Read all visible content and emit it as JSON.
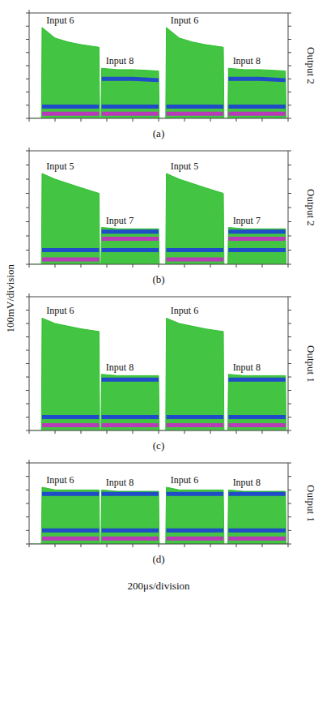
{
  "xlabel": "200μs/division",
  "ylabel": "100mV/division",
  "chart_data": [
    {
      "type": "area",
      "title": "(a)",
      "subtitle": "Output 2",
      "tick_labels": false,
      "grid": false,
      "x": [
        0,
        95,
        100,
        200,
        300,
        400,
        540,
        545,
        555,
        560,
        680,
        800,
        1000,
        1005,
        1055,
        1060,
        1160,
        1260,
        1360,
        1500,
        1505,
        1535,
        1540,
        1660,
        1780,
        1980,
        1985,
        2000
      ],
      "xlim": [
        0,
        2000
      ],
      "xticks": [
        0,
        200,
        400,
        600,
        800,
        1000,
        1200,
        1400,
        1600,
        1800,
        2000
      ],
      "ylim": [
        0,
        800
      ],
      "yticks": [
        0,
        100,
        200,
        300,
        400,
        500,
        600,
        700,
        800
      ],
      "series": [
        {
          "type": "area",
          "color": "#2fbf2f",
          "values": [
            0,
            0,
            690,
            610,
            580,
            560,
            540,
            0,
            0,
            380,
            370,
            370,
            360,
            0,
            0,
            690,
            610,
            580,
            560,
            540,
            0,
            0,
            380,
            370,
            370,
            360,
            0,
            0
          ]
        },
        {
          "type": "line",
          "color": "#1a35e0",
          "values": [
            null,
            null,
            null,
            null,
            null,
            null,
            null,
            null,
            null,
            300,
            300,
            300,
            290,
            null,
            null,
            null,
            null,
            null,
            null,
            null,
            null,
            null,
            300,
            300,
            300,
            290,
            null,
            null
          ]
        },
        {
          "type": "line",
          "color": "#1a35e0",
          "values": [
            null,
            null,
            90,
            90,
            90,
            90,
            90,
            null,
            null,
            90,
            90,
            90,
            90,
            null,
            null,
            90,
            90,
            90,
            90,
            90,
            null,
            null,
            90,
            90,
            90,
            90,
            null,
            null
          ]
        },
        {
          "type": "line",
          "color": "#cc22cc",
          "values": [
            null,
            null,
            35,
            35,
            35,
            35,
            35,
            null,
            null,
            35,
            35,
            35,
            35,
            null,
            null,
            35,
            35,
            35,
            35,
            35,
            null,
            null,
            35,
            35,
            35,
            35,
            null,
            null
          ]
        }
      ],
      "annotations": [
        {
          "text": "Input 6",
          "x": 240
        },
        {
          "text": "Input 8",
          "x": 700
        },
        {
          "text": "Input 6",
          "x": 1200
        },
        {
          "text": "Input 8",
          "x": 1680
        }
      ]
    },
    {
      "type": "area",
      "title": "(b)",
      "subtitle": "Output 2",
      "tick_labels": false,
      "grid": false,
      "x": [
        0,
        95,
        100,
        200,
        300,
        400,
        540,
        545,
        555,
        560,
        680,
        800,
        1000,
        1005,
        1055,
        1060,
        1160,
        1260,
        1360,
        1500,
        1505,
        1535,
        1540,
        1660,
        1780,
        1980,
        1985,
        2000
      ],
      "xlim": [
        0,
        2000
      ],
      "xticks": [
        0,
        200,
        400,
        600,
        800,
        1000,
        1200,
        1400,
        1600,
        1800,
        2000
      ],
      "ylim": [
        0,
        800
      ],
      "yticks": [
        0,
        100,
        200,
        300,
        400,
        500,
        600,
        700,
        800
      ],
      "series": [
        {
          "type": "area",
          "color": "#2fbf2f",
          "values": [
            0,
            0,
            640,
            600,
            570,
            540,
            500,
            0,
            0,
            260,
            250,
            250,
            250,
            0,
            0,
            640,
            600,
            570,
            540,
            500,
            0,
            0,
            260,
            250,
            250,
            250,
            0,
            0
          ]
        },
        {
          "type": "line",
          "color": "#1a35e0",
          "values": [
            null,
            null,
            null,
            null,
            null,
            null,
            null,
            null,
            null,
            230,
            230,
            230,
            230,
            null,
            null,
            null,
            null,
            null,
            null,
            null,
            null,
            null,
            230,
            230,
            230,
            230,
            null,
            null
          ]
        },
        {
          "type": "line",
          "color": "#1a35e0",
          "values": [
            null,
            null,
            100,
            100,
            100,
            100,
            100,
            null,
            null,
            100,
            100,
            100,
            100,
            null,
            null,
            100,
            100,
            100,
            100,
            100,
            null,
            null,
            100,
            100,
            100,
            100,
            null,
            null
          ]
        },
        {
          "type": "line",
          "color": "#cc22cc",
          "values": [
            null,
            null,
            35,
            35,
            35,
            35,
            35,
            null,
            null,
            180,
            180,
            180,
            180,
            null,
            null,
            35,
            35,
            35,
            35,
            35,
            null,
            null,
            180,
            180,
            180,
            180,
            null,
            null
          ]
        }
      ],
      "annotations": [
        {
          "text": "Input 5",
          "x": 240
        },
        {
          "text": "Input 7",
          "x": 700
        },
        {
          "text": "Input 5",
          "x": 1200
        },
        {
          "text": "Input 7",
          "x": 1680
        }
      ]
    },
    {
      "type": "area",
      "title": "(c)",
      "subtitle": "Output 1",
      "tick_labels": false,
      "grid": false,
      "x": [
        0,
        95,
        100,
        200,
        300,
        400,
        540,
        545,
        555,
        560,
        680,
        800,
        1000,
        1005,
        1055,
        1060,
        1160,
        1260,
        1360,
        1500,
        1505,
        1535,
        1540,
        1660,
        1780,
        1980,
        1985,
        2000
      ],
      "xlim": [
        0,
        2000
      ],
      "xticks": [
        0,
        200,
        400,
        600,
        800,
        1000,
        1200,
        1400,
        1600,
        1800,
        2000
      ],
      "ylim": [
        0,
        1000
      ],
      "yticks": [
        0,
        100,
        200,
        300,
        400,
        500,
        600,
        700,
        800,
        900,
        1000
      ],
      "series": [
        {
          "type": "area",
          "color": "#2fbf2f",
          "values": [
            0,
            0,
            840,
            800,
            780,
            760,
            740,
            0,
            0,
            420,
            410,
            410,
            410,
            0,
            0,
            840,
            800,
            780,
            760,
            740,
            0,
            0,
            420,
            410,
            410,
            410,
            0,
            0
          ]
        },
        {
          "type": "line",
          "color": "#1a35e0",
          "values": [
            null,
            null,
            null,
            null,
            null,
            null,
            null,
            null,
            null,
            380,
            380,
            380,
            380,
            null,
            null,
            null,
            null,
            null,
            null,
            null,
            null,
            null,
            380,
            380,
            380,
            380,
            null,
            null
          ]
        },
        {
          "type": "line",
          "color": "#1a35e0",
          "values": [
            null,
            null,
            100,
            100,
            100,
            100,
            100,
            null,
            null,
            100,
            100,
            100,
            100,
            null,
            null,
            100,
            100,
            100,
            100,
            100,
            null,
            null,
            100,
            100,
            100,
            100,
            null,
            null
          ]
        },
        {
          "type": "line",
          "color": "#cc22cc",
          "values": [
            null,
            null,
            40,
            40,
            40,
            40,
            40,
            null,
            null,
            40,
            40,
            40,
            40,
            null,
            null,
            40,
            40,
            40,
            40,
            40,
            null,
            null,
            40,
            40,
            40,
            40,
            null,
            null
          ]
        }
      ],
      "annotations": [
        {
          "text": "Input 6",
          "x": 240
        },
        {
          "text": "Input 8",
          "x": 700
        },
        {
          "text": "Input 6",
          "x": 1200
        },
        {
          "text": "Input 8",
          "x": 1680
        }
      ]
    },
    {
      "type": "area",
      "title": "(d)",
      "subtitle": "Output 1",
      "tick_labels": false,
      "grid": false,
      "x": [
        0,
        95,
        100,
        200,
        300,
        400,
        540,
        545,
        555,
        560,
        680,
        800,
        1000,
        1005,
        1055,
        1060,
        1160,
        1260,
        1360,
        1500,
        1505,
        1535,
        1540,
        1660,
        1780,
        1980,
        1985,
        2000
      ],
      "xlim": [
        0,
        2000
      ],
      "xticks": [
        0,
        200,
        400,
        600,
        800,
        1000,
        1200,
        1400,
        1600,
        1800,
        2000
      ],
      "ylim": [
        0,
        600
      ],
      "yticks": [
        0,
        100,
        200,
        300,
        400,
        500,
        600
      ],
      "series": [
        {
          "type": "area",
          "color": "#2fbf2f",
          "values": [
            0,
            0,
            420,
            400,
            400,
            400,
            400,
            0,
            0,
            400,
            390,
            390,
            390,
            0,
            0,
            420,
            400,
            400,
            400,
            400,
            0,
            0,
            400,
            390,
            390,
            390,
            0,
            0
          ]
        },
        {
          "type": "line",
          "color": "#1a35e0",
          "values": [
            null,
            null,
            370,
            370,
            370,
            370,
            370,
            null,
            null,
            370,
            370,
            370,
            370,
            null,
            null,
            370,
            370,
            370,
            370,
            370,
            null,
            null,
            370,
            370,
            370,
            370,
            null,
            null
          ]
        },
        {
          "type": "line",
          "color": "#1a35e0",
          "values": [
            null,
            null,
            100,
            100,
            100,
            100,
            100,
            null,
            null,
            100,
            100,
            100,
            100,
            null,
            null,
            100,
            100,
            100,
            100,
            100,
            null,
            null,
            100,
            100,
            100,
            100,
            null,
            null
          ]
        },
        {
          "type": "line",
          "color": "#cc22cc",
          "values": [
            null,
            null,
            40,
            40,
            40,
            40,
            40,
            null,
            null,
            40,
            40,
            40,
            40,
            null,
            null,
            40,
            40,
            40,
            40,
            40,
            null,
            null,
            40,
            40,
            40,
            40,
            null,
            null
          ]
        }
      ],
      "annotations": [
        {
          "text": "Input 6",
          "x": 240
        },
        {
          "text": "Input 8",
          "x": 700
        },
        {
          "text": "Input 6",
          "x": 1200
        },
        {
          "text": "Input 8",
          "x": 1680
        }
      ]
    }
  ]
}
